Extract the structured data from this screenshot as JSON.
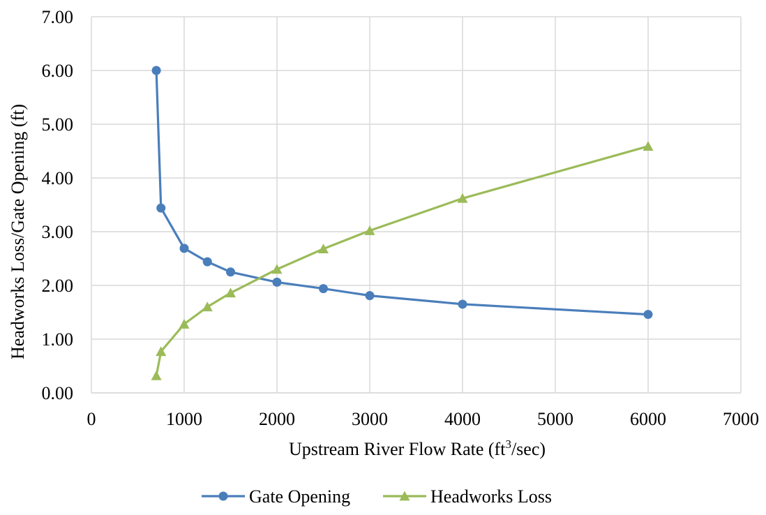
{
  "chart_data": {
    "type": "line",
    "xlabel": {
      "text": "Upstream River Flow Rate (ft",
      "sup": "3",
      "suffix": "/sec)"
    },
    "ylabel": "Headworks Loss/Gate Opening (ft)",
    "xlim": [
      0,
      7000
    ],
    "ylim": [
      0,
      7
    ],
    "x_ticks": [
      "0",
      "1000",
      "2000",
      "3000",
      "4000",
      "5000",
      "6000",
      "7000"
    ],
    "y_ticks": [
      "0.00",
      "1.00",
      "2.00",
      "3.00",
      "4.00",
      "5.00",
      "6.00",
      "7.00"
    ],
    "grid": true,
    "legend_position": "bottom",
    "series": [
      {
        "name": "Gate Opening",
        "color": "#4a7ebb",
        "marker": "circle",
        "x": [
          700,
          750,
          1000,
          1250,
          1500,
          2000,
          2500,
          3000,
          4000,
          6000
        ],
        "y": [
          6.0,
          3.44,
          2.69,
          2.44,
          2.25,
          2.06,
          1.94,
          1.81,
          1.65,
          1.46
        ]
      },
      {
        "name": "Headworks Loss",
        "color": "#9bbb59",
        "marker": "triangle",
        "x": [
          700,
          750,
          1000,
          1250,
          1500,
          2000,
          2500,
          3000,
          4000,
          6000
        ],
        "y": [
          0.32,
          0.77,
          1.28,
          1.6,
          1.86,
          2.3,
          2.68,
          3.02,
          3.62,
          4.59
        ]
      }
    ]
  }
}
